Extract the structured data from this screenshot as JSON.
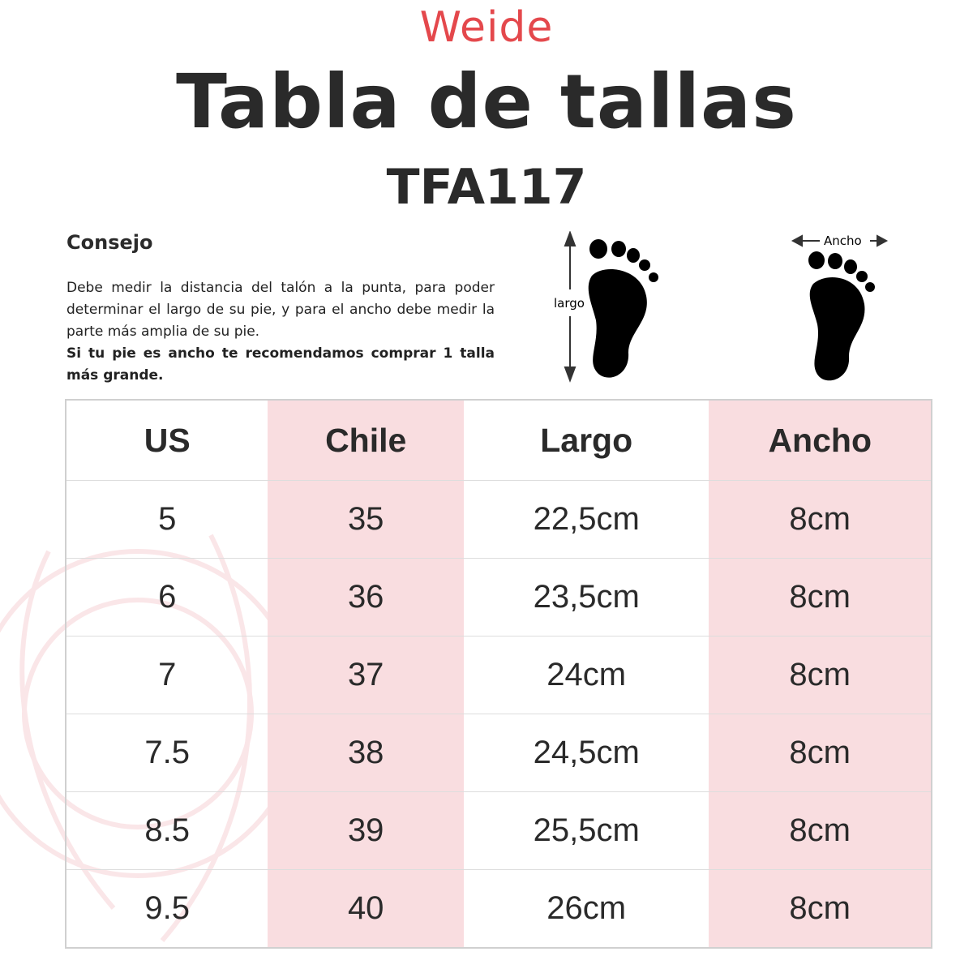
{
  "brand": "Weide",
  "title": "Tabla de tallas",
  "model": "TFA117",
  "tip": {
    "heading": "Consejo",
    "body": "Debe medir la distancia del talón a la punta, para poder determinar el largo de su pie, y para el ancho debe medir la parte más amplia de su pie.",
    "bold": "Si tu pie es ancho te recomendamos comprar  1 talla más grande."
  },
  "diagram": {
    "length_label": "largo",
    "width_label": "Ancho"
  },
  "colors": {
    "accent": "#e4484c",
    "column_highlight": "#f9dde0"
  },
  "table": {
    "headers": [
      "US",
      "Chile",
      "Largo",
      "Ancho"
    ],
    "rows": [
      [
        "5",
        "35",
        "22,5cm",
        "8cm"
      ],
      [
        "6",
        "36",
        "23,5cm",
        "8cm"
      ],
      [
        "7",
        "37",
        "24cm",
        "8cm"
      ],
      [
        "7.5",
        "38",
        "24,5cm",
        "8cm"
      ],
      [
        "8.5",
        "39",
        "25,5cm",
        "8cm"
      ],
      [
        "9.5",
        "40",
        "26cm",
        "8cm"
      ]
    ]
  }
}
